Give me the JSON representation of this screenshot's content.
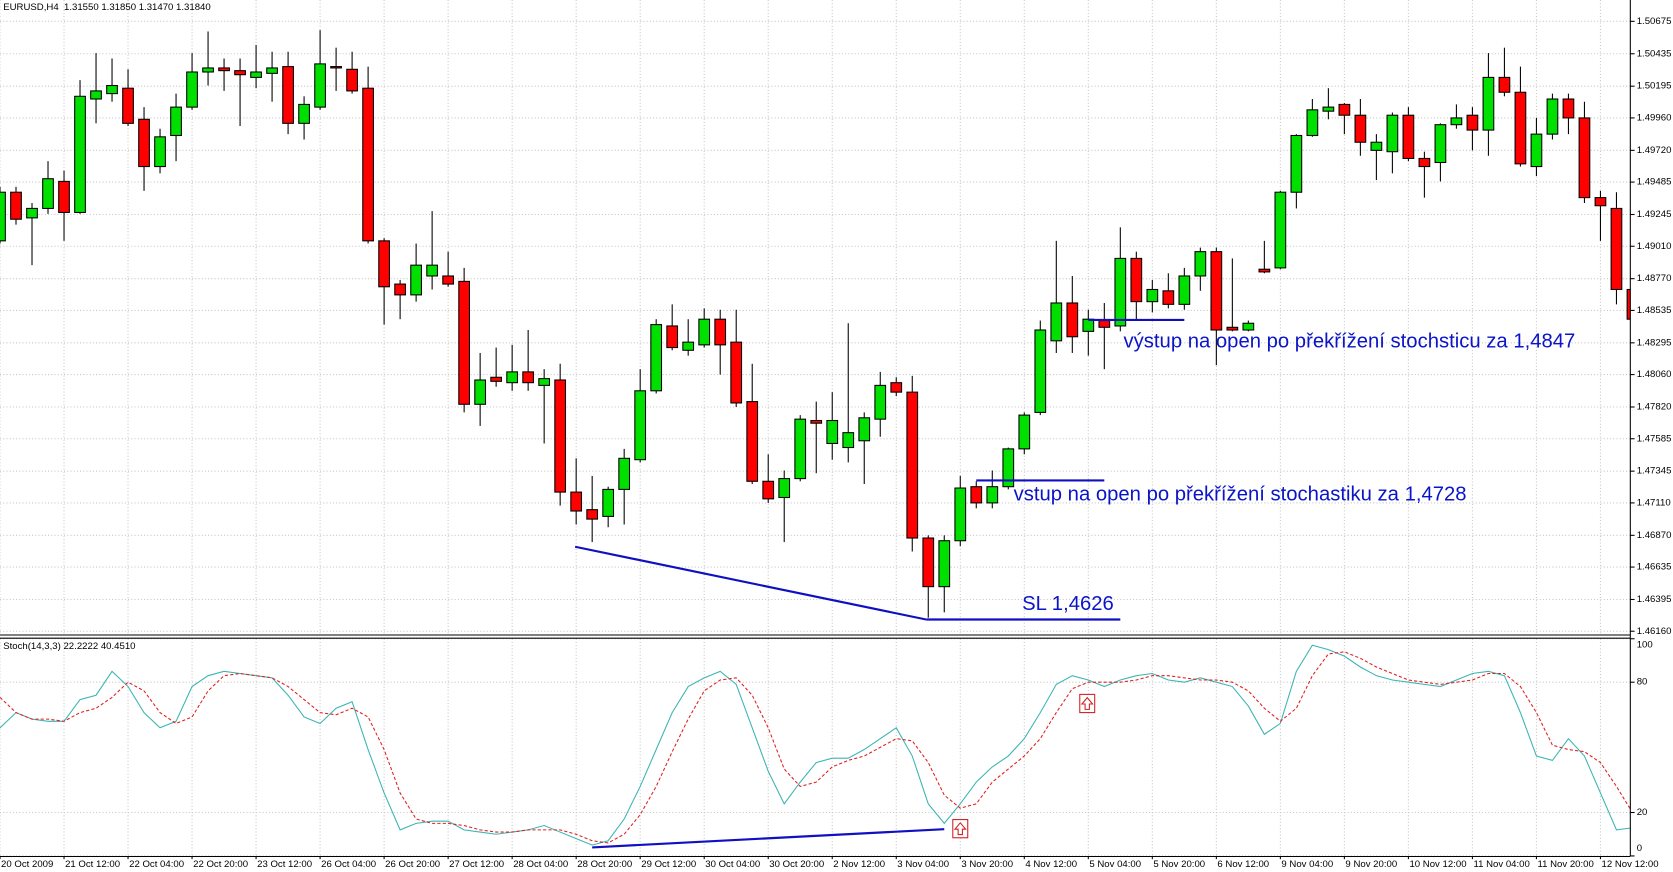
{
  "chart_data": [
    {
      "type": "candlestick",
      "title": "EURUSD,H4  1.31550 1.31850 1.31470 1.31840",
      "up_color": "#00e000",
      "down_color": "#ff0000",
      "grid": true,
      "ylim": [
        1.46136,
        1.50833
      ],
      "yticks": [
        1.50675,
        1.50435,
        1.50195,
        {
          "value": 1.4996,
          "label": "1.49960"
        },
        {
          "value": 1.4972,
          "label": "1.49720"
        },
        1.49485,
        1.49245,
        {
          "value": 1.4901,
          "label": "1.49010"
        },
        {
          "value": 1.4877,
          "label": "1.48770"
        },
        1.48535,
        1.48295,
        {
          "value": 1.4806,
          "label": "1.48060"
        },
        {
          "value": 1.4782,
          "label": "1.47820"
        },
        1.47585,
        1.47345,
        {
          "value": 1.4711,
          "label": "1.47110"
        },
        {
          "value": 1.4687,
          "label": "1.46870"
        },
        1.46635,
        1.46395,
        {
          "value": 1.4616,
          "label": "1.46160"
        }
      ],
      "annotations": [
        "výstup na open po překřížení stochsticu za 1,4847",
        "vstup na open po překřížení stochastiku za 1,4728",
        "SL 1,4626"
      ],
      "open": [
        1.4905,
        1.4941,
        1.4922,
        1.4929,
        1.4949,
        1.4926,
        1.501,
        1.5014,
        1.5018,
        1.4995,
        1.496,
        1.4983,
        1.5004,
        1.503,
        1.5033,
        1.5031,
        1.5026,
        1.5029,
        1.5034,
        1.4992,
        1.5004,
        1.5034,
        1.5032,
        1.5018,
        1.4905,
        1.4873,
        1.4865,
        1.4879,
        1.4879,
        1.4875,
        1.4784,
        1.4804,
        1.48,
        1.4808,
        1.4798,
        1.4802,
        1.4719,
        1.4706,
        1.4701,
        1.4721,
        1.4743,
        1.4794,
        1.4842,
        1.4824,
        1.4828,
        1.4847,
        1.483,
        1.4786,
        1.4727,
        1.4715,
        1.4729,
        1.4772,
        1.4755,
        1.4752,
        1.4757,
        1.4773,
        1.48,
        1.4793,
        1.4685,
        1.4649,
        1.4683,
        1.4723,
        1.4711,
        1.4723,
        1.4751,
        1.4778,
        1.4831,
        1.4859,
        1.4838,
        1.4846,
        1.4842,
        1.4892,
        1.486,
        1.4868,
        1.4858,
        1.4879,
        1.4897,
        1.4841,
        1.4839,
        1.4884,
        1.4885,
        1.4941,
        1.4983,
        1.5001,
        1.5006,
        1.4998,
        1.4972,
        1.4971,
        1.4998,
        1.4966,
        1.4963,
        1.4991,
        1.4998,
        1.4987,
        1.5026,
        1.5015,
        1.496,
        1.4984,
        1.501,
        1.4996,
        1.4937,
        1.4929,
        1.4869
      ],
      "high": [
        1.4945,
        1.4945,
        1.4933,
        1.4964,
        1.4957,
        1.5024,
        1.5044,
        1.504,
        1.5032,
        1.5004,
        1.4988,
        1.5014,
        1.5044,
        1.506,
        1.504,
        1.504,
        1.505,
        1.5045,
        1.5045,
        1.5012,
        1.5061,
        1.5048,
        1.5045,
        1.5034,
        1.4907,
        1.4876,
        1.4903,
        1.4927,
        1.4897,
        1.4885,
        1.4822,
        1.4826,
        1.4828,
        1.4839,
        1.481,
        1.4814,
        1.4744,
        1.4731,
        1.4723,
        1.4751,
        1.481,
        1.4847,
        1.4858,
        1.4847,
        1.4855,
        1.4854,
        1.4854,
        1.4814,
        1.4747,
        1.4735,
        1.4776,
        1.4786,
        1.4793,
        1.4844,
        1.4778,
        1.4808,
        1.4804,
        1.4805,
        1.4687,
        1.4687,
        1.4731,
        1.4727,
        1.4735,
        1.4752,
        1.4778,
        1.4846,
        1.4905,
        1.4879,
        1.4854,
        1.4859,
        1.4915,
        1.4897,
        1.4876,
        1.4881,
        1.4885,
        1.49,
        1.49,
        1.4892,
        1.4846,
        1.4905,
        1.4942,
        1.4984,
        1.501,
        1.5018,
        1.5007,
        1.501,
        1.4984,
        1.5,
        1.5004,
        1.4971,
        1.4992,
        1.5006,
        1.5004,
        1.5044,
        1.5048,
        1.5034,
        1.4996,
        1.5014,
        1.5014,
        1.5008,
        1.4942,
        1.4941,
        1.4876
      ],
      "low": [
        1.4903,
        1.4917,
        1.4887,
        1.4925,
        1.4905,
        1.4925,
        1.4992,
        1.5008,
        1.499,
        1.4942,
        1.4955,
        1.4964,
        1.5002,
        1.502,
        1.5016,
        1.499,
        1.5018,
        1.5008,
        1.4984,
        1.498,
        1.5002,
        1.5016,
        1.5014,
        1.4903,
        1.4843,
        1.4847,
        1.486,
        1.4869,
        1.4871,
        1.4778,
        1.4768,
        1.4797,
        1.4794,
        1.4794,
        1.4755,
        1.4709,
        1.4695,
        1.4682,
        1.4693,
        1.4695,
        1.4741,
        1.4792,
        1.4824,
        1.482,
        1.4826,
        1.4806,
        1.4782,
        1.4725,
        1.4711,
        1.4682,
        1.4727,
        1.4733,
        1.4743,
        1.4741,
        1.4725,
        1.476,
        1.479,
        1.4675,
        1.4626,
        1.463,
        1.4679,
        1.4707,
        1.4707,
        1.4721,
        1.4747,
        1.4776,
        1.4822,
        1.4822,
        1.482,
        1.481,
        1.4838,
        1.4846,
        1.4852,
        1.4855,
        1.4854,
        1.4868,
        1.4813,
        1.4838,
        1.4838,
        1.4881,
        1.4884,
        1.4929,
        1.4982,
        1.4995,
        1.4984,
        1.4968,
        1.495,
        1.4955,
        1.4964,
        1.4937,
        1.4949,
        1.4988,
        1.4972,
        1.4968,
        1.5012,
        1.496,
        1.4953,
        1.498,
        1.4984,
        1.4933,
        1.4905,
        1.4858,
        1.4846
      ],
      "close": [
        1.4941,
        1.4921,
        1.4929,
        1.4951,
        1.4926,
        1.5012,
        1.5016,
        1.502,
        1.4992,
        1.496,
        1.4982,
        1.5004,
        1.503,
        1.5033,
        1.5031,
        1.5028,
        1.503,
        1.5033,
        1.4992,
        1.5006,
        1.5036,
        1.5033,
        1.5016,
        1.4905,
        1.4871,
        1.4865,
        1.4887,
        1.4887,
        1.4873,
        1.4784,
        1.4802,
        1.4801,
        1.4808,
        1.48,
        1.4803,
        1.4719,
        1.4705,
        1.4699,
        1.4721,
        1.4744,
        1.4794,
        1.4843,
        1.4826,
        1.483,
        1.4847,
        1.4828,
        1.4785,
        1.4727,
        1.4714,
        1.4729,
        1.4773,
        1.477,
        1.4772,
        1.4763,
        1.4774,
        1.4798,
        1.4793,
        1.4685,
        1.4649,
        1.4683,
        1.4722,
        1.4711,
        1.4723,
        1.4751,
        1.4776,
        1.4839,
        1.4859,
        1.4834,
        1.4847,
        1.4841,
        1.4892,
        1.486,
        1.4869,
        1.4858,
        1.4879,
        1.4897,
        1.4839,
        1.4839,
        1.4844,
        1.4882,
        1.4941,
        1.4983,
        1.5002,
        1.5004,
        1.4998,
        1.4978,
        1.4978,
        1.4998,
        1.4966,
        1.496,
        1.4991,
        1.4996,
        1.4987,
        1.5026,
        1.5015,
        1.4962,
        1.4984,
        1.501,
        1.4996,
        1.4937,
        1.4931,
        1.4869,
        1.4847
      ]
    },
    {
      "type": "line",
      "title": "Stoch(14,3,3) 22.2222 40.4510",
      "grid": true,
      "ylim": [
        0,
        100
      ],
      "yticks": [
        0,
        20,
        80,
        100
      ],
      "categories": [
        "20 Oct 2009",
        null,
        null,
        null,
        "21 Oct 12:00",
        null,
        null,
        null,
        "22 Oct 04:00",
        null,
        null,
        null,
        "22 Oct 20:00",
        null,
        null,
        null,
        "23 Oct 12:00",
        null,
        null,
        null,
        "26 Oct 04:00",
        null,
        null,
        null,
        "26 Oct 20:00",
        null,
        null,
        null,
        "27 Oct 12:00",
        null,
        null,
        null,
        "28 Oct 04:00",
        null,
        null,
        null,
        "28 Oct 20:00",
        null,
        null,
        null,
        "29 Oct 12:00",
        null,
        null,
        null,
        "30 Oct 04:00",
        null,
        null,
        null,
        "30 Oct 20:00",
        null,
        null,
        null,
        "2 Nov 12:00",
        null,
        null,
        null,
        "3 Nov 04:00",
        null,
        null,
        null,
        "3 Nov 20:00",
        null,
        null,
        null,
        "4 Nov 12:00",
        null,
        null,
        null,
        "5 Nov 04:00",
        null,
        null,
        null,
        "5 Nov 20:00",
        null,
        null,
        null,
        "6 Nov 12:00",
        null,
        null,
        null,
        "9 Nov 04:00",
        null,
        null,
        null,
        "9 Nov 20:00",
        null,
        null,
        null,
        "10 Nov 12:00",
        null,
        null,
        null,
        "11 Nov 04:00",
        null,
        null,
        null,
        "11 Nov 20:00",
        null,
        null,
        null,
        "12 Nov 12:00",
        null,
        null
      ],
      "series": [
        {
          "color": "#3cb4b4",
          "line_style": "solid",
          "values": [
            59,
            66,
            63,
            62,
            62,
            72,
            74,
            85,
            78,
            66,
            59,
            62,
            78,
            83,
            85,
            84,
            83,
            82,
            74,
            64,
            61,
            68,
            71,
            49,
            29,
            12,
            15,
            16,
            16,
            12,
            11,
            10,
            11,
            12,
            14,
            11,
            8,
            5,
            7,
            17,
            32,
            49,
            66,
            78,
            82,
            85,
            79,
            59,
            39,
            24,
            34,
            43,
            45,
            45,
            49,
            54,
            59,
            46,
            24,
            15,
            24,
            34,
            41,
            46,
            54,
            66,
            79,
            83,
            81,
            78,
            81,
            83,
            84,
            81,
            80,
            82,
            80,
            78,
            69,
            56,
            61,
            85,
            97,
            95,
            92,
            87,
            83,
            81,
            80,
            79,
            78,
            81,
            84,
            85,
            83,
            66,
            46,
            44,
            54,
            46,
            29,
            12,
            13
          ]
        },
        {
          "color": "#e02020",
          "line_style": "dashed",
          "values": [
            73,
            66,
            63,
            63,
            62,
            66,
            68,
            73,
            80,
            76,
            66,
            61,
            64,
            76,
            83,
            84,
            83,
            82,
            78,
            72,
            66,
            65,
            68,
            64,
            49,
            29,
            17,
            15,
            15,
            14,
            12,
            11,
            11,
            12,
            12,
            12,
            10,
            7,
            6,
            10,
            19,
            32,
            48,
            63,
            76,
            81,
            82,
            74,
            59,
            40,
            32,
            34,
            41,
            44,
            46,
            50,
            54,
            53,
            43,
            28,
            22,
            24,
            34,
            40,
            46,
            54,
            66,
            77,
            80,
            80,
            80,
            81,
            83,
            83,
            82,
            81,
            81,
            80,
            76,
            68,
            62,
            68,
            83,
            93,
            94,
            91,
            87,
            84,
            81,
            80,
            79,
            80,
            81,
            84,
            84,
            78,
            66,
            51,
            49,
            48,
            43,
            32,
            20
          ]
        }
      ]
    }
  ]
}
